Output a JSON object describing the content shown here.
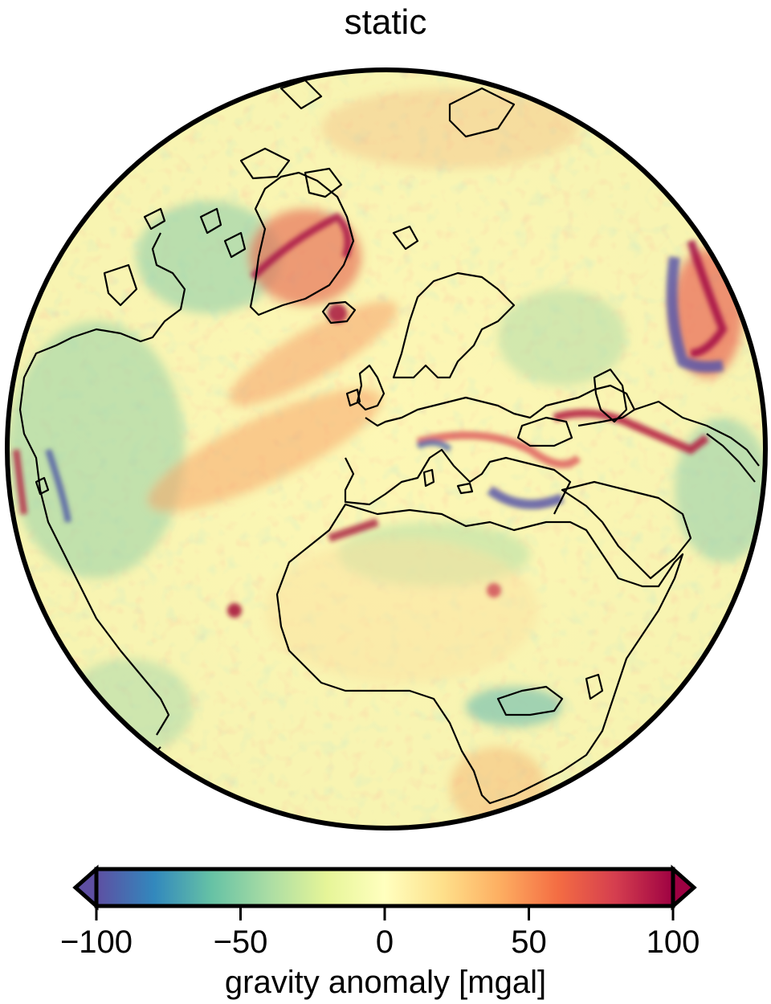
{
  "title": "static",
  "colorbar": {
    "label": "gravity anomaly [mgal]",
    "min": -100,
    "max": 100,
    "extend": "both",
    "ticks": [
      {
        "value": -100,
        "label": "−100"
      },
      {
        "value": -50,
        "label": "−50"
      },
      {
        "value": 0,
        "label": "0"
      },
      {
        "value": 50,
        "label": "50"
      },
      {
        "value": 100,
        "label": "100"
      }
    ],
    "colormap": "Spectral_r",
    "colors": [
      "#5e4fa2",
      "#3288bd",
      "#66c2a5",
      "#abdda4",
      "#e6f598",
      "#ffffbf",
      "#fee08b",
      "#fdae61",
      "#f46d43",
      "#d53e4f",
      "#9e0142"
    ]
  },
  "map": {
    "projection": "orthographic",
    "field": "gravity anomaly",
    "coastlines": true,
    "coastline_color": "#000000"
  }
}
